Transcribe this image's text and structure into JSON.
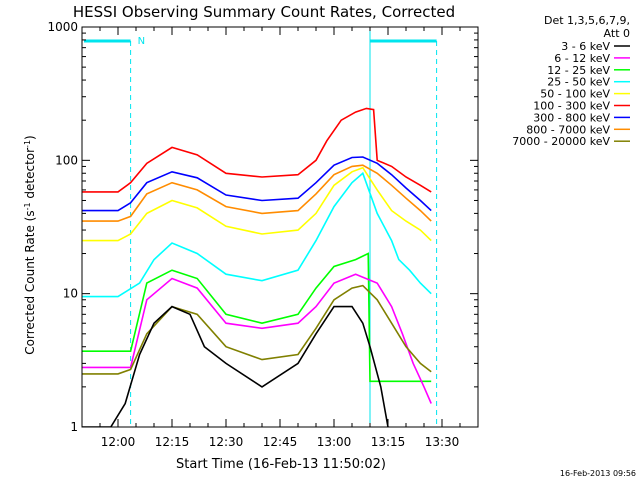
{
  "chart_data": {
    "type": "line",
    "title": "HESSI Observing Summary Count Rates, Corrected",
    "xlabel": "Start Time (16-Feb-13 11:50:02)",
    "ylabel_main": "Corrected Count Rate (s",
    "ylabel_sup1": "-1",
    "ylabel_mid": " detector",
    "ylabel_sup2": "-1",
    "ylabel_end": ")",
    "yscale": "log",
    "ylim": [
      1,
      1000
    ],
    "xlim_minutes": [
      -10,
      100
    ],
    "x_ticks": [
      {
        "m": 0,
        "label": "12:00"
      },
      {
        "m": 15,
        "label": "12:15"
      },
      {
        "m": 30,
        "label": "12:30"
      },
      {
        "m": 45,
        "label": "12:45"
      },
      {
        "m": 60,
        "label": "13:00"
      },
      {
        "m": 75,
        "label": "13:15"
      },
      {
        "m": 90,
        "label": "13:30"
      }
    ],
    "y_ticks": [
      {
        "v": 1,
        "label": "1"
      },
      {
        "v": 10,
        "label": "10"
      },
      {
        "v": 100,
        "label": "100"
      },
      {
        "v": 1000,
        "label": "1000"
      }
    ],
    "legend": {
      "position": "right",
      "header": [
        "Det 1,3,5,6,7,9,",
        "Att 0"
      ]
    },
    "flag": {
      "label": "N",
      "color": "#00e5ee"
    },
    "series": [
      {
        "name": "3 - 6 keV",
        "color": "#000000",
        "x": [
          -10,
          -2,
          2,
          6,
          10,
          15,
          20,
          24,
          30,
          40,
          50,
          55,
          60,
          65,
          68,
          70,
          73,
          75
        ],
        "y": [
          1,
          1,
          1.5,
          3.5,
          6,
          8,
          7,
          4,
          3,
          2,
          3,
          5,
          8,
          8,
          6,
          4,
          2,
          1
        ]
      },
      {
        "name": "6 - 12 keV",
        "color": "#ff00ff",
        "x": [
          -10,
          0,
          3.5,
          8,
          15,
          22,
          30,
          40,
          50,
          55,
          60,
          66,
          72,
          76,
          79,
          82,
          85,
          87
        ],
        "y": [
          2.8,
          2.8,
          2.8,
          9,
          13,
          11,
          6,
          5.5,
          6,
          8,
          12,
          14,
          12,
          8,
          5,
          3,
          2,
          1.5
        ]
      },
      {
        "name": "12 - 25 keV",
        "color": "#00ff00",
        "x": [
          -10,
          0,
          3.5,
          8,
          15,
          22,
          30,
          40,
          50,
          55,
          60,
          66,
          69.5,
          70,
          75,
          80,
          84,
          87
        ],
        "y": [
          3.7,
          3.7,
          3.7,
          12,
          15,
          13,
          7,
          6,
          7,
          11,
          16,
          18,
          20,
          2.2,
          2.2,
          2.2,
          2.2,
          2.2
        ]
      },
      {
        "name": "25 - 50 keV",
        "color": "#00ffff",
        "x": [
          -10,
          0,
          6,
          10,
          15,
          22,
          30,
          40,
          50,
          55,
          60,
          65,
          68,
          72,
          76,
          78,
          81,
          84,
          87
        ],
        "y": [
          9.5,
          9.5,
          12,
          18,
          24,
          20,
          14,
          12.5,
          15,
          25,
          45,
          68,
          80,
          40,
          25,
          18,
          15,
          12,
          10
        ]
      },
      {
        "name": "50 - 100 keV",
        "color": "#ffff00",
        "x": [
          -10,
          0,
          3.5,
          8,
          15,
          22,
          30,
          40,
          50,
          55,
          60,
          65,
          68,
          72,
          76,
          80,
          84,
          87
        ],
        "y": [
          25,
          25,
          28,
          40,
          50,
          44,
          32,
          28,
          30,
          40,
          65,
          82,
          88,
          60,
          42,
          35,
          30,
          25
        ]
      },
      {
        "name": "100 - 300 keV",
        "color": "#ff0000",
        "x": [
          -10,
          0,
          3.5,
          8,
          15,
          22,
          30,
          40,
          50,
          55,
          58,
          62,
          66,
          69,
          71,
          72,
          76,
          80,
          84,
          87
        ],
        "y": [
          58,
          58,
          68,
          95,
          125,
          110,
          80,
          75,
          78,
          100,
          140,
          200,
          230,
          245,
          240,
          100,
          90,
          75,
          65,
          58
        ]
      },
      {
        "name": "300 - 800 keV",
        "color": "#0000ff",
        "x": [
          -10,
          0,
          3.5,
          8,
          15,
          22,
          30,
          40,
          50,
          55,
          60,
          65,
          68,
          72,
          76,
          80,
          84,
          87
        ],
        "y": [
          42,
          42,
          48,
          68,
          82,
          74,
          55,
          50,
          52,
          68,
          92,
          105,
          106,
          95,
          78,
          62,
          50,
          42
        ]
      },
      {
        "name": "800 - 7000 keV",
        "color": "#ff8c00",
        "x": [
          -10,
          0,
          3.5,
          8,
          15,
          22,
          30,
          40,
          50,
          55,
          60,
          65,
          68,
          72,
          76,
          80,
          84,
          87
        ],
        "y": [
          35,
          35,
          38,
          56,
          68,
          60,
          45,
          40,
          42,
          56,
          78,
          90,
          92,
          80,
          65,
          52,
          42,
          35
        ]
      },
      {
        "name": "7000 - 20000 keV",
        "color": "#808000",
        "x": [
          -10,
          0,
          3.5,
          8,
          15,
          22,
          30,
          40,
          50,
          55,
          60,
          65,
          68,
          72,
          76,
          80,
          84,
          87
        ],
        "y": [
          2.5,
          2.5,
          2.7,
          5,
          8,
          7,
          4,
          3.2,
          3.5,
          5.5,
          9,
          11,
          11.5,
          9,
          6,
          4,
          3,
          2.6
        ]
      }
    ]
  },
  "footer_timestamp": "16-Feb-2013 09:56"
}
